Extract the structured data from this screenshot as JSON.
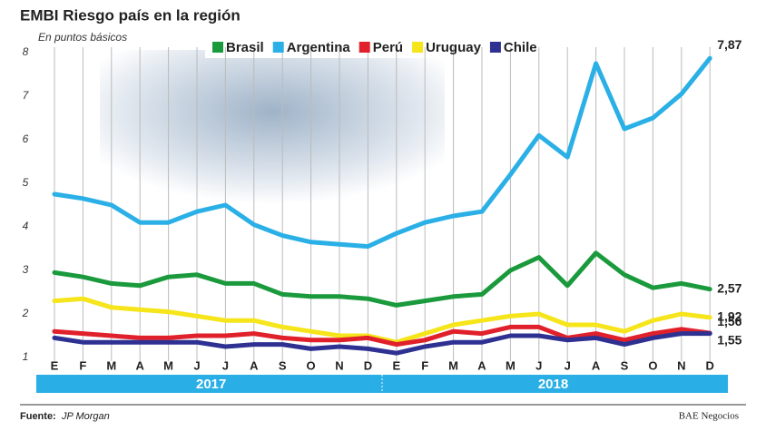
{
  "chart_data": {
    "type": "line",
    "title": "EMBI Riesgo país en la región",
    "subtitle": "En puntos básicos",
    "categories": [
      "E",
      "F",
      "M",
      "A",
      "M",
      "J",
      "J",
      "A",
      "S",
      "O",
      "N",
      "D",
      "E",
      "F",
      "M",
      "A",
      "M",
      "J",
      "J",
      "A",
      "S",
      "O",
      "N",
      "D"
    ],
    "year_groups": [
      "2017",
      "2018"
    ],
    "ylim": [
      1,
      8
    ],
    "yticks": [
      1,
      2,
      3,
      4,
      5,
      6,
      7,
      8
    ],
    "grid": true,
    "series": [
      {
        "name": "Brasil",
        "color": "#1a9a3c",
        "values": [
          2.95,
          2.85,
          2.7,
          2.65,
          2.85,
          2.9,
          2.7,
          2.7,
          2.45,
          2.4,
          2.4,
          2.35,
          2.2,
          2.3,
          2.4,
          2.45,
          3.0,
          3.3,
          2.65,
          3.4,
          2.9,
          2.6,
          2.7,
          2.57
        ],
        "value_labels": [
          null,
          null,
          null,
          null,
          null,
          null,
          null,
          null,
          null,
          null,
          null,
          null,
          null,
          null,
          null,
          null,
          null,
          null,
          null,
          null,
          null,
          null,
          null,
          "2,57"
        ]
      },
      {
        "name": "Argentina",
        "color": "#2ab0e6",
        "values": [
          4.75,
          4.65,
          4.5,
          4.1,
          4.1,
          4.35,
          4.5,
          4.05,
          3.8,
          3.65,
          3.6,
          3.55,
          3.85,
          4.1,
          4.25,
          4.35,
          5.2,
          6.1,
          5.6,
          7.75,
          6.25,
          6.5,
          7.05,
          7.87
        ],
        "value_labels": [
          null,
          null,
          null,
          null,
          null,
          null,
          null,
          null,
          null,
          null,
          null,
          null,
          null,
          null,
          null,
          null,
          null,
          null,
          null,
          null,
          null,
          null,
          null,
          "7,87"
        ]
      },
      {
        "name": "Perú",
        "color": "#e0202a",
        "values": [
          1.6,
          1.55,
          1.5,
          1.45,
          1.45,
          1.5,
          1.5,
          1.55,
          1.45,
          1.4,
          1.4,
          1.45,
          1.3,
          1.4,
          1.6,
          1.55,
          1.7,
          1.7,
          1.45,
          1.55,
          1.4,
          1.55,
          1.65,
          1.56
        ],
        "value_labels": [
          null,
          null,
          null,
          null,
          null,
          null,
          null,
          null,
          null,
          null,
          null,
          null,
          null,
          null,
          null,
          null,
          null,
          null,
          null,
          null,
          null,
          null,
          null,
          "1,56"
        ]
      },
      {
        "name": "Uruguay",
        "color": "#f5e51a",
        "values": [
          2.3,
          2.35,
          2.15,
          2.1,
          2.05,
          1.95,
          1.85,
          1.85,
          1.7,
          1.6,
          1.5,
          1.5,
          1.35,
          1.55,
          1.75,
          1.85,
          1.95,
          2.0,
          1.75,
          1.75,
          1.6,
          1.85,
          2.0,
          1.92
        ],
        "value_labels": [
          null,
          null,
          null,
          null,
          null,
          null,
          null,
          null,
          null,
          null,
          null,
          null,
          null,
          null,
          null,
          null,
          null,
          null,
          null,
          null,
          null,
          null,
          null,
          "1,92"
        ]
      },
      {
        "name": "Chile",
        "color": "#2e3192",
        "values": [
          1.45,
          1.35,
          1.35,
          1.35,
          1.35,
          1.35,
          1.25,
          1.3,
          1.3,
          1.2,
          1.25,
          1.2,
          1.1,
          1.25,
          1.35,
          1.35,
          1.5,
          1.5,
          1.4,
          1.45,
          1.3,
          1.45,
          1.55,
          1.55
        ],
        "value_labels": [
          null,
          null,
          null,
          null,
          null,
          null,
          null,
          null,
          null,
          null,
          null,
          null,
          null,
          null,
          null,
          null,
          null,
          null,
          null,
          null,
          null,
          null,
          null,
          "1,55"
        ]
      }
    ]
  },
  "footer": {
    "source_label": "Fuente:",
    "source": "JP Morgan",
    "brand": "BAE Negocios"
  }
}
